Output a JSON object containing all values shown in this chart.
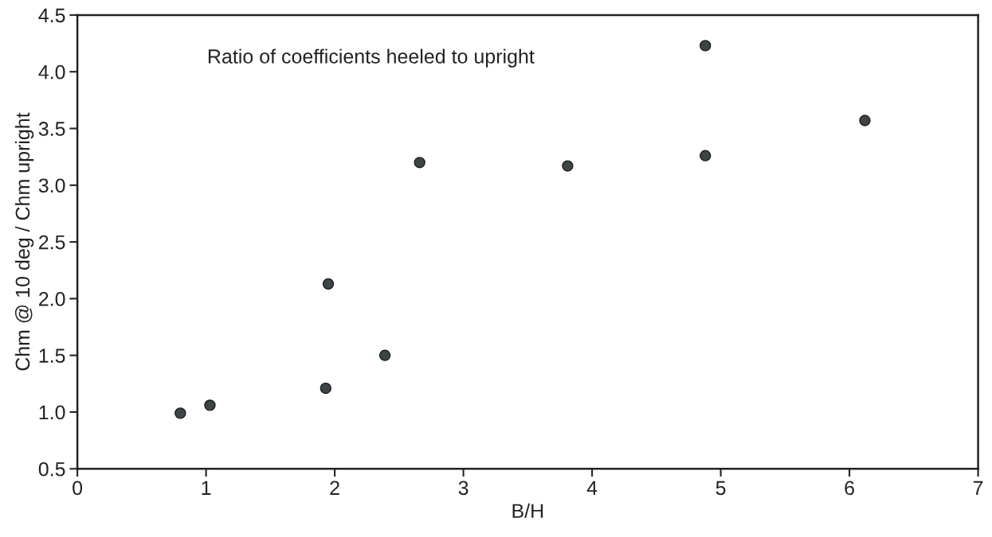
{
  "chart_data": {
    "type": "scatter",
    "xlabel": "B/H",
    "ylabel": "Chm @ 10 deg / Chm upright",
    "annotations": [
      "Ratio of coefficients heeled to upright"
    ],
    "x": [
      0.8,
      1.03,
      1.93,
      1.95,
      2.39,
      2.66,
      3.81,
      4.88,
      4.88,
      6.12
    ],
    "series": [
      {
        "color": "#3c4446",
        "values": [
          0.99,
          1.06,
          1.21,
          2.13,
          1.5,
          3.2,
          3.17,
          4.23,
          3.26,
          3.57
        ]
      }
    ],
    "xlim": [
      0,
      7
    ],
    "ylim": [
      0.5,
      4.5
    ],
    "xticks": [
      0,
      1,
      2,
      3,
      4,
      5,
      6,
      7
    ],
    "yticks": [
      {
        "value": 0.5,
        "label": "0.5"
      },
      {
        "value": 1.0,
        "label": "1.0"
      },
      {
        "value": 1.5,
        "label": "1.5"
      },
      {
        "value": 2.0,
        "label": "2.0"
      },
      {
        "value": 2.5,
        "label": "2.5"
      },
      {
        "value": 3.0,
        "label": "3.0"
      },
      {
        "value": 3.5,
        "label": "3.5"
      },
      {
        "value": 4.0,
        "label": "4.0"
      },
      {
        "value": 4.5,
        "label": "4.5"
      }
    ],
    "grid": false,
    "marker": "circle"
  }
}
